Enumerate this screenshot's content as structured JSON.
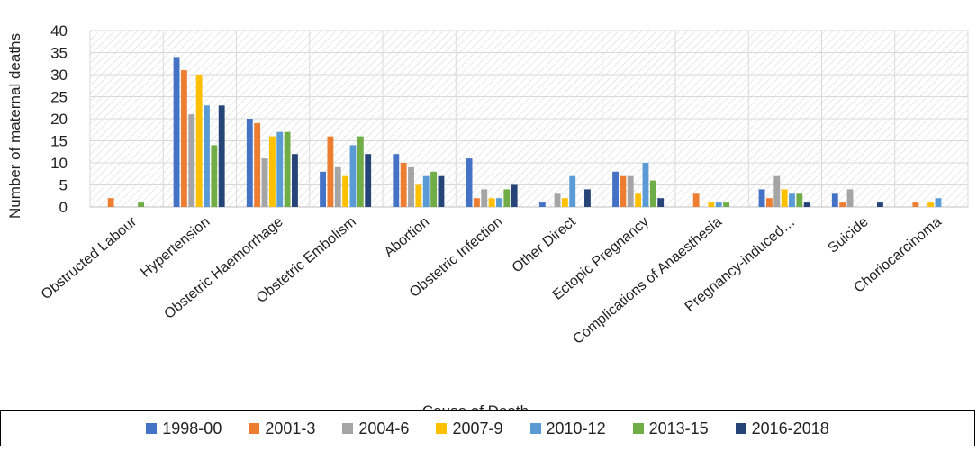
{
  "chart_data": {
    "type": "bar",
    "xlabel": "Cause of Death",
    "ylabel": "Number of maternal deaths",
    "ylim": [
      0,
      40
    ],
    "yticks": [
      0,
      5,
      10,
      15,
      20,
      25,
      30,
      35,
      40
    ],
    "grid": true,
    "legend_position": "bottom",
    "categories": [
      "Obstructed Labour",
      "Hypertension",
      "Obstetric Haemorrhage",
      "Obstetric Embolism",
      "Abortion",
      "Obstetric Infection",
      "Other Direct",
      "Ectopic Pregnancy",
      "Complications of Anaesthesia",
      "Pregnancy-induced…",
      "Suicide",
      "Choriocarcinoma"
    ],
    "series": [
      {
        "name": "1998-00",
        "color": "#4472C4",
        "values": [
          0,
          34,
          20,
          8,
          12,
          11,
          1,
          8,
          0,
          4,
          3,
          0
        ]
      },
      {
        "name": "2001-3",
        "color": "#ED7D31",
        "values": [
          2,
          31,
          19,
          16,
          10,
          2,
          0,
          7,
          3,
          2,
          1,
          1
        ]
      },
      {
        "name": "2004-6",
        "color": "#A5A5A5",
        "values": [
          0,
          21,
          11,
          9,
          9,
          4,
          3,
          7,
          0,
          7,
          4,
          0
        ]
      },
      {
        "name": "2007-9",
        "color": "#FFC000",
        "values": [
          0,
          30,
          16,
          7,
          5,
          2,
          2,
          3,
          1,
          4,
          0,
          1
        ]
      },
      {
        "name": "2010-12",
        "color": "#5B9BD5",
        "values": [
          0,
          23,
          17,
          14,
          7,
          2,
          7,
          10,
          1,
          3,
          0,
          2
        ]
      },
      {
        "name": "2013-15",
        "color": "#70AD47",
        "values": [
          1,
          14,
          17,
          16,
          8,
          4,
          0,
          6,
          1,
          3,
          0,
          0
        ]
      },
      {
        "name": "2016-2018",
        "color": "#264478",
        "values": [
          0,
          23,
          12,
          12,
          7,
          5,
          4,
          2,
          0,
          1,
          1,
          0
        ]
      }
    ]
  }
}
